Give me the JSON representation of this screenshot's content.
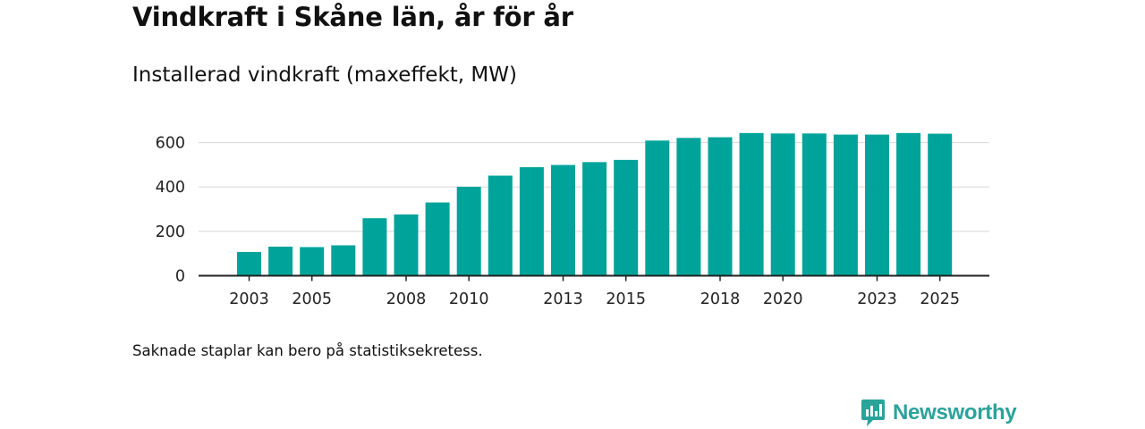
{
  "title": "Vindkraft i Skåne län, år för år",
  "subtitle": "Installerad vindkraft (maxeffekt, MW)",
  "footnote": "Saknade staplar kan bero på statistiksekretess.",
  "brand": {
    "name": "Newsworthy",
    "icon": "newsworthy-logo-icon",
    "color": "#2aa39a"
  },
  "colors": {
    "bar": "#00a39a",
    "grid": "#dddddd",
    "axis": "#222222",
    "text": "#222222"
  },
  "chart_data": {
    "type": "bar",
    "title": "Vindkraft i Skåne län, år för år",
    "ylabel": "Installerad vindkraft (maxeffekt, MW)",
    "xlabel": "",
    "categories": [
      "2003",
      "2004",
      "2005",
      "2006",
      "2007",
      "2008",
      "2009",
      "2010",
      "2011",
      "2012",
      "2013",
      "2014",
      "2015",
      "2016",
      "2017",
      "2018",
      "2019",
      "2020",
      "2021",
      "2022",
      "2023",
      "2024",
      "2025"
    ],
    "values": [
      107,
      131,
      129,
      137,
      259,
      276,
      330,
      401,
      451,
      489,
      499,
      512,
      522,
      609,
      621,
      624,
      643,
      641,
      641,
      636,
      636,
      643,
      640
    ],
    "x_tick_labels": [
      "2003",
      "2005",
      "2008",
      "2010",
      "2013",
      "2015",
      "2018",
      "2020",
      "2023",
      "2025"
    ],
    "y_ticks": [
      0,
      200,
      400,
      600
    ],
    "ylim": [
      0,
      660
    ],
    "grid": true
  }
}
